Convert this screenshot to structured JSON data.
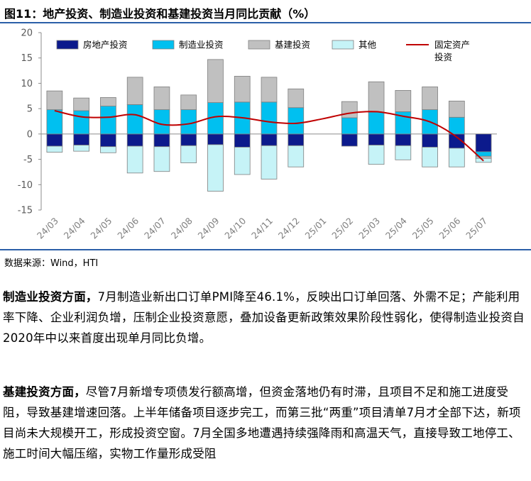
{
  "header": {
    "title": "图11：地产投资、制造业投资和基建投资当月同比贡献（%）"
  },
  "source": "数据来源：Wind，HTI",
  "chart_data": {
    "type": "bar",
    "stacked": true,
    "categories": [
      "24/03",
      "24/04",
      "24/05",
      "24/06",
      "24/07",
      "24/08",
      "24/09",
      "24/10",
      "24/11",
      "24/12",
      "25/01",
      "25/02",
      "25/03",
      "25/04",
      "25/05",
      "25/06",
      "25/07"
    ],
    "ylim": [
      -15,
      20
    ],
    "yticks": [
      -15,
      -10,
      -5,
      0,
      5,
      10,
      15,
      20
    ],
    "series": [
      {
        "name": "房地产投资",
        "color": "#0c1a8c",
        "values": [
          -2.4,
          -2.2,
          -2.5,
          -2.4,
          -2.5,
          -2.3,
          -2.1,
          -2.6,
          -2.3,
          -2.3,
          null,
          -2.4,
          -2.2,
          -2.3,
          -2.6,
          -2.8,
          -3.5
        ]
      },
      {
        "name": "制造业投资",
        "color": "#00c0f0",
        "values": [
          4.8,
          4.6,
          5.5,
          5.8,
          4.8,
          4.8,
          6.2,
          6.3,
          6.3,
          5.2,
          null,
          3.2,
          4.3,
          4.4,
          4.8,
          3.3,
          -0.9
        ]
      },
      {
        "name": "基建投资",
        "color": "#c0c0c0",
        "values": [
          3.7,
          2.5,
          1.7,
          5.4,
          4.5,
          2.9,
          8.5,
          5.1,
          4.9,
          3.7,
          null,
          3.2,
          6.0,
          4.2,
          4.5,
          3.2,
          -0.4
        ]
      },
      {
        "name": "其他",
        "color": "#c6f3f7",
        "values": [
          -1.2,
          -1.2,
          -1.2,
          -5.3,
          -4.9,
          -3.4,
          -9.2,
          -5.4,
          -6.6,
          -4.2,
          null,
          0.0,
          -3.8,
          -2.8,
          -3.9,
          -3.7,
          -0.8
        ]
      }
    ],
    "line": {
      "name": "固定资产投资",
      "color": "#c00000",
      "values": [
        4.6,
        3.4,
        3.3,
        3.8,
        1.9,
        2.0,
        3.4,
        3.2,
        2.4,
        2.1,
        3.0,
        4.1,
        4.4,
        3.5,
        2.4,
        -0.6,
        -5.3
      ]
    },
    "legend": [
      {
        "label": "房地产投资",
        "kind": "box",
        "color": "#0c1a8c"
      },
      {
        "label": "制造业投资",
        "kind": "box",
        "color": "#00c0f0"
      },
      {
        "label": "基建投资",
        "kind": "box",
        "color": "#c0c0c0"
      },
      {
        "label": "其他",
        "kind": "box",
        "color": "#c6f3f7"
      },
      {
        "label": "固定资产",
        "label2": "投资",
        "kind": "line",
        "color": "#c00000"
      }
    ]
  },
  "paragraphs": [
    {
      "lead": "制造业投资方面，",
      "body": "7月制造业新出口订单PMI降至46.1%，反映出口订单回落、外需不足；产能利用率下降、企业利润负增，压制企业投资意愿，叠加设备更新政策效果阶段性弱化，使得制造业投资自2020年中以来首度出现单月同比负增。"
    },
    {
      "lead": "基建投资方面，",
      "body": "尽管7月新增专项债发行额高增，但资金落地仍有时滞，且项目不足和施工进度受阻，导致基建增速回落。上半年储备项目逐步完工，而第三批“两重”项目清单7月才全部下达，新项目尚未大规模开工，形成投资空窗。7月全国多地遭遇持续强降雨和高温天气，直接导致工地停工、施工时间大幅压缩，实物工作量形成受阻"
    }
  ]
}
